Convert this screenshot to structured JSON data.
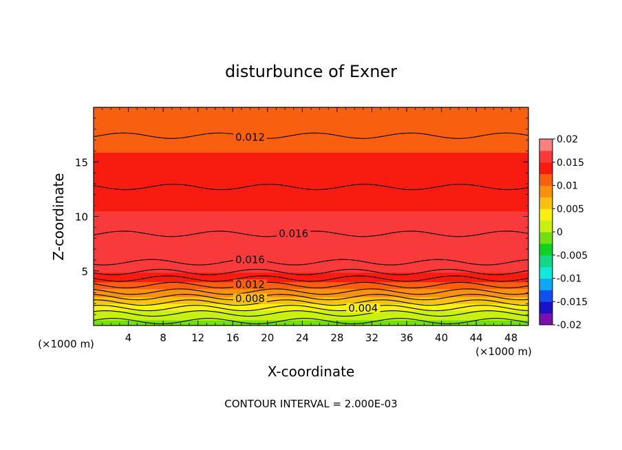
{
  "chart_data": {
    "type": "contour",
    "title": "disturbunce of Exner",
    "xlabel": "X-coordinate",
    "ylabel": "Z-coordinate",
    "x_unit_left": "(×1000 m)",
    "x_unit_right": "(×1000 m)",
    "footer": "CONTOUR INTERVAL = 2.000E-03",
    "xlim": [
      0,
      50
    ],
    "ylim": [
      0,
      20
    ],
    "x_ticks": [
      4,
      8,
      12,
      16,
      20,
      24,
      28,
      32,
      36,
      40,
      44,
      48
    ],
    "y_ticks": [
      5,
      10,
      15
    ],
    "x_tick_labels": [
      "4",
      "8",
      "12",
      "16",
      "20",
      "24",
      "28",
      "32",
      "36",
      "40",
      "44",
      "48"
    ],
    "y_tick_labels": [
      "5",
      "10",
      "15"
    ],
    "colorbar": {
      "min": -0.02,
      "max": 0.02,
      "step": 0.0025,
      "labels": [
        "0.02",
        "0.015",
        "0.01",
        "0.005",
        "0",
        "-0.005",
        "-0.01",
        "-0.015",
        "-0.02"
      ],
      "colors_low_to_high": [
        "#7a10b0",
        "#1c10c8",
        "#1050ee",
        "#10a8f4",
        "#10e8d8",
        "#10d888",
        "#10d020",
        "#70e010",
        "#c8f010",
        "#f8f010",
        "#f8c010",
        "#f89010",
        "#f86010",
        "#f81c10",
        "#f83a3a",
        "#f88080"
      ]
    },
    "level_profile": [
      {
        "z": 0.0,
        "v": -0.0005
      },
      {
        "z": 0.5,
        "v": 0.0
      },
      {
        "z": 1.0,
        "v": 0.0015
      },
      {
        "z": 1.5,
        "v": 0.003
      },
      {
        "z": 2.0,
        "v": 0.0048
      },
      {
        "z": 2.5,
        "v": 0.0068
      },
      {
        "z": 3.0,
        "v": 0.0087
      },
      {
        "z": 3.5,
        "v": 0.0106
      },
      {
        "z": 4.0,
        "v": 0.0123
      },
      {
        "z": 4.5,
        "v": 0.014
      },
      {
        "z": 5.0,
        "v": 0.0152
      },
      {
        "z": 6.0,
        "v": 0.0163
      },
      {
        "z": 7.0,
        "v": 0.0172
      },
      {
        "z": 8.0,
        "v": 0.0168
      },
      {
        "z": 9.0,
        "v": 0.0157
      },
      {
        "z": 11.0,
        "v": 0.0148
      },
      {
        "z": 12.7,
        "v": 0.014
      },
      {
        "z": 15.0,
        "v": 0.0128
      },
      {
        "z": 17.4,
        "v": 0.012
      },
      {
        "z": 18.8,
        "v": 0.0108
      },
      {
        "z": 20.0,
        "v": 0.0102
      }
    ],
    "wave": {
      "amplitude_z": 0.25,
      "wavelength_x": 11.0
    },
    "contours": [
      {
        "label": "0.004",
        "z": 1.6,
        "label_x": 31
      },
      {
        "label": "0.008",
        "z": 2.6,
        "label_x": 18
      },
      {
        "label": "0.012",
        "z": 3.7,
        "label_x": 18
      },
      {
        "label": "0.016",
        "z": 5.8,
        "label_x": 18
      },
      {
        "label": "0.016",
        "z": 8.4,
        "label_x": 23
      },
      {
        "label": "",
        "z": 12.7,
        "label_x": null
      },
      {
        "label": "0.012",
        "z": 17.4,
        "label_x": 18
      }
    ],
    "extra_contour_heights": [
      0.4,
      1.1,
      2.1,
      3.1,
      4.3,
      4.9
    ]
  }
}
